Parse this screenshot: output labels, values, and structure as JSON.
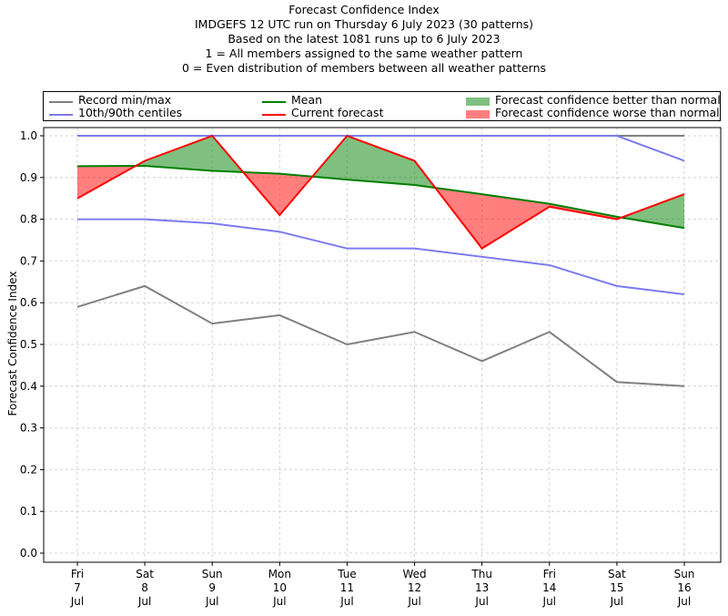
{
  "chart_data": {
    "type": "line",
    "title_lines": [
      "Forecast Confidence Index",
      "IMDGEFS 12 UTC run on Thursday 6 July 2023 (30 patterns)",
      "Based on the latest 1081 runs up to 6 July 2023",
      "1 = All members assigned to the same weather pattern",
      "0 = Even distribution of members between all weather patterns"
    ],
    "xlabel": "",
    "ylabel": "Forecast Confidence Index",
    "ylim": [
      0.0,
      1.0
    ],
    "yticks": [
      "0.0",
      "0.1",
      "0.2",
      "0.3",
      "0.4",
      "0.5",
      "0.6",
      "0.7",
      "0.8",
      "0.9",
      "1.0"
    ],
    "categories": [
      [
        "Fri",
        "7",
        "Jul"
      ],
      [
        "Sat",
        "8",
        "Jul"
      ],
      [
        "Sun",
        "9",
        "Jul"
      ],
      [
        "Mon",
        "10",
        "Jul"
      ],
      [
        "Tue",
        "11",
        "Jul"
      ],
      [
        "Wed",
        "12",
        "Jul"
      ],
      [
        "Thu",
        "13",
        "Jul"
      ],
      [
        "Fri",
        "14",
        "Jul"
      ],
      [
        "Sat",
        "15",
        "Jul"
      ],
      [
        "Sun",
        "16",
        "Jul"
      ]
    ],
    "grid": true,
    "legend_position": "top",
    "series": [
      {
        "name": "Record max",
        "color": "#808080",
        "values": [
          1.0,
          1.0,
          1.0,
          1.0,
          1.0,
          1.0,
          1.0,
          1.0,
          1.0,
          1.0
        ]
      },
      {
        "name": "Record min",
        "color": "#808080",
        "values": [
          0.59,
          0.64,
          0.55,
          0.57,
          0.5,
          0.53,
          0.46,
          0.53,
          0.41,
          0.4
        ]
      },
      {
        "name": "90th centile",
        "color": "#7b7bf0",
        "values": [
          1.0,
          1.0,
          1.0,
          1.0,
          1.0,
          1.0,
          1.0,
          1.0,
          1.0,
          0.94
        ]
      },
      {
        "name": "10th centile",
        "color": "#7b7bf0",
        "values": [
          0.8,
          0.8,
          0.79,
          0.77,
          0.73,
          0.73,
          0.71,
          0.69,
          0.64,
          0.62
        ]
      },
      {
        "name": "Mean",
        "color": "#008000",
        "values": [
          0.927,
          0.928,
          0.916,
          0.909,
          0.895,
          0.882,
          0.86,
          0.837,
          0.806,
          0.779
        ]
      },
      {
        "name": "Current forecast",
        "color": "#ff0000",
        "values": [
          0.85,
          0.94,
          1.0,
          0.81,
          1.0,
          0.94,
          0.73,
          0.83,
          0.8,
          0.86
        ]
      }
    ],
    "fills": [
      {
        "name": "Forecast confidence better than normal",
        "color": "#008000",
        "opacity": 0.5,
        "rule": "current > mean"
      },
      {
        "name": "Forecast confidence worse than normal",
        "color": "#ff0000",
        "opacity": 0.5,
        "rule": "current < mean"
      }
    ],
    "legend": [
      {
        "label": "Record min/max",
        "kind": "line",
        "color": "#808080"
      },
      {
        "label": "10th/90th centiles",
        "kind": "line",
        "color": "#7b7bf0"
      },
      {
        "label": "Mean",
        "kind": "line",
        "color": "#008000"
      },
      {
        "label": "Current forecast",
        "kind": "line",
        "color": "#ff0000"
      },
      {
        "label": "Forecast confidence better than normal",
        "kind": "patch",
        "color": "#7fbf7f"
      },
      {
        "label": "Forecast confidence worse than normal",
        "kind": "patch",
        "color": "#ff7f7f"
      }
    ]
  }
}
